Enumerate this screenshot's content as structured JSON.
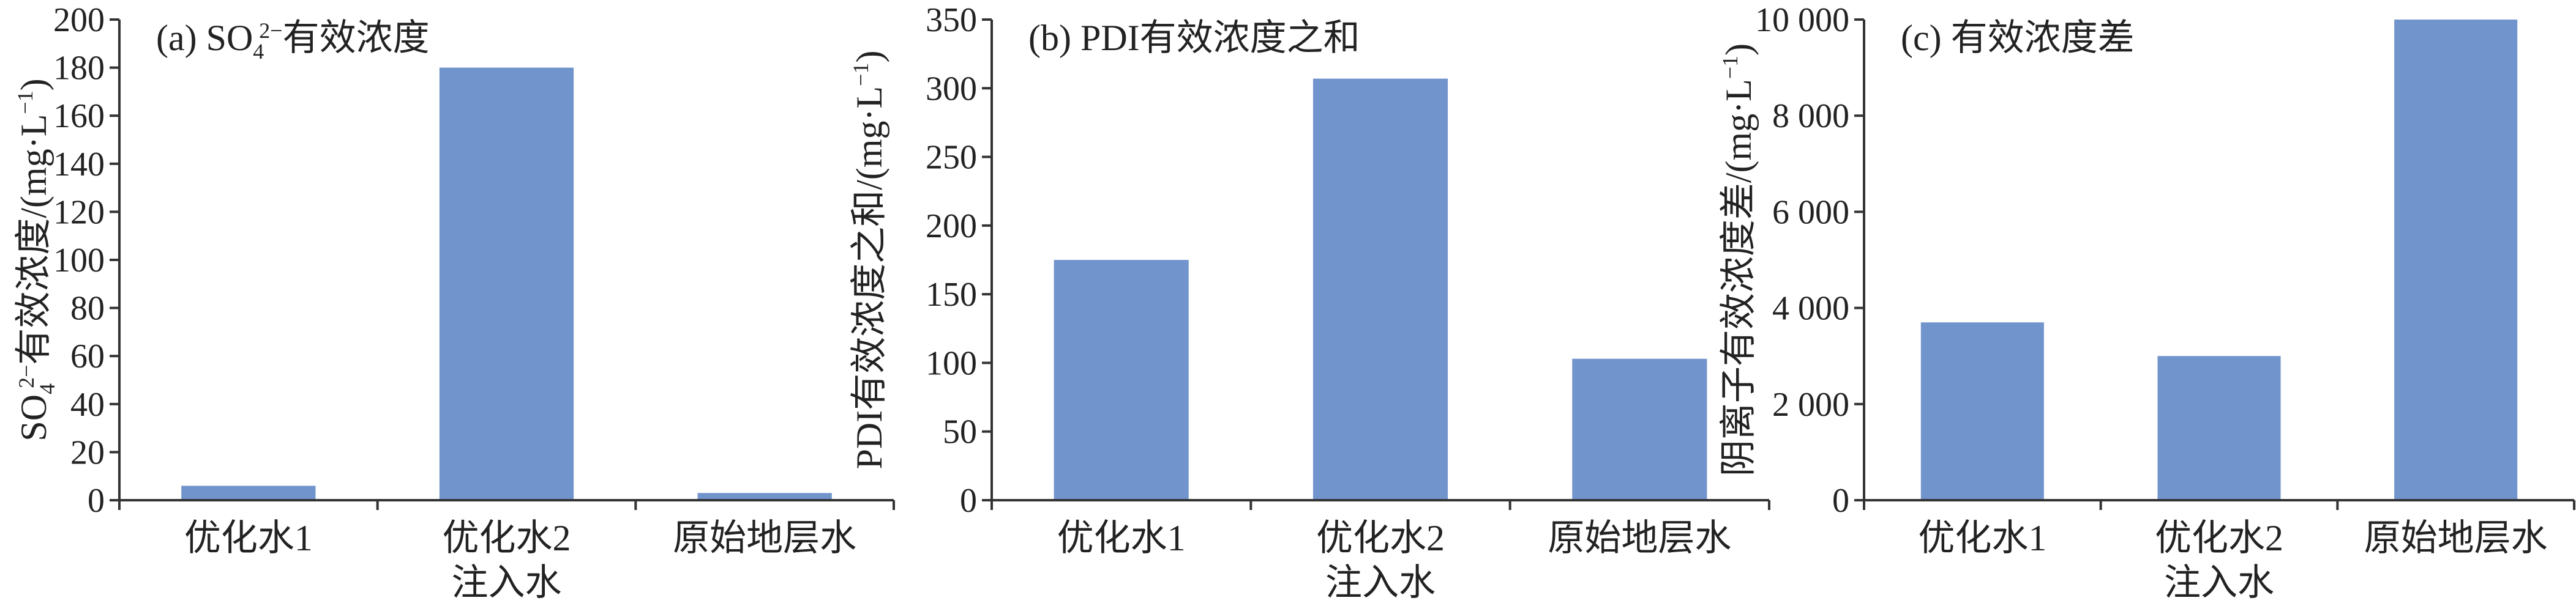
{
  "chart_data": [
    {
      "type": "bar",
      "title": "(a) SO₄²⁻有效浓度",
      "title_parts": {
        "prefix": "(a) SO",
        "sub": "4",
        "sup": "2−",
        "suffix": "有效浓度"
      },
      "ylabel_parts": {
        "prefix": "SO",
        "sub": "4",
        "sup": "2−",
        "suffix": "有效浓度/(mg·L",
        "unit_sup": "−1",
        "end": ")"
      },
      "categories": [
        "优化水1",
        "优化水2",
        "原始地层水"
      ],
      "sub_categories": [
        "",
        "注入水",
        ""
      ],
      "values": [
        6,
        180,
        3
      ],
      "ylim": [
        0,
        200
      ],
      "yticks": [
        0,
        20,
        40,
        60,
        80,
        100,
        120,
        140,
        160,
        180,
        200
      ],
      "ytick_labels": [
        "0",
        "20",
        "40",
        "60",
        "80",
        "100",
        "120",
        "140",
        "160",
        "180",
        "200"
      ],
      "grid": false,
      "color": "#7294cd"
    },
    {
      "type": "bar",
      "title": "(b) PDI有效浓度之和",
      "ylabel_parts": {
        "prefix": "",
        "sub": "",
        "sup": "",
        "suffix": "PDI有效浓度之和/(mg·L",
        "unit_sup": "−1",
        "end": ")"
      },
      "categories": [
        "优化水1",
        "优化水2",
        "原始地层水"
      ],
      "sub_categories": [
        "",
        "注入水",
        ""
      ],
      "values": [
        175,
        307,
        103
      ],
      "ylim": [
        0,
        350
      ],
      "yticks": [
        0,
        50,
        100,
        150,
        200,
        250,
        300,
        350
      ],
      "ytick_labels": [
        "0",
        "50",
        "100",
        "150",
        "200",
        "250",
        "300",
        "350"
      ],
      "grid": false,
      "color": "#7294cd"
    },
    {
      "type": "bar",
      "title": "(c) 有效浓度差",
      "ylabel_parts": {
        "prefix": "",
        "sub": "",
        "sup": "",
        "suffix": "阴离子有效浓度差/(mg·L",
        "unit_sup": "−1",
        "end": ")"
      },
      "categories": [
        "优化水1",
        "优化水2",
        "原始地层水"
      ],
      "sub_categories": [
        "",
        "注入水",
        ""
      ],
      "values": [
        3700,
        3000,
        10000
      ],
      "ylim": [
        0,
        10000
      ],
      "yticks": [
        0,
        2000,
        4000,
        6000,
        8000,
        10000
      ],
      "ytick_labels": [
        "0",
        "2 000",
        "4 000",
        "6 000",
        "8 000",
        "10 000"
      ],
      "grid": false,
      "color": "#7294cd"
    }
  ]
}
